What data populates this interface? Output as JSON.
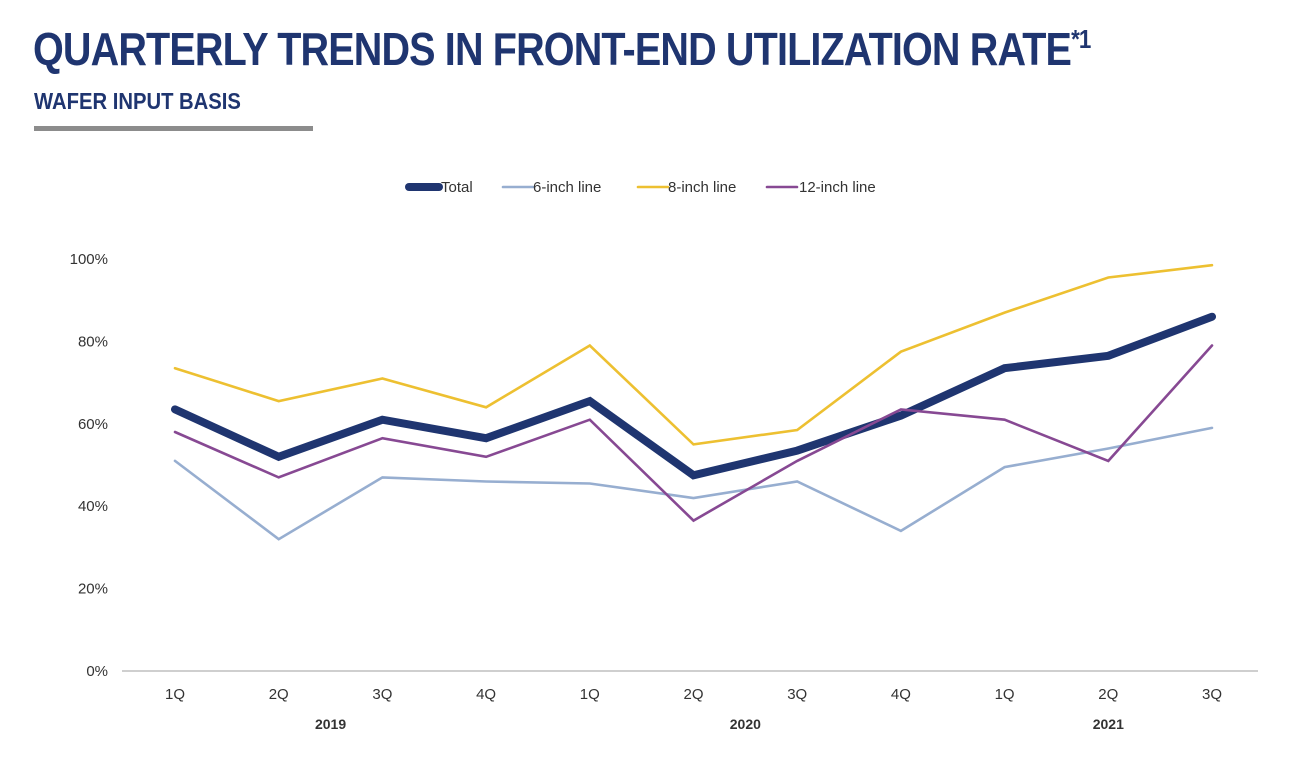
{
  "header": {
    "title": "QUARTERLY TRENDS IN FRONT-END UTILIZATION RATE",
    "title_footnote": "*1",
    "subtitle": "WAFER INPUT BASIS"
  },
  "chart_data": {
    "type": "line",
    "title": "QUARTERLY TRENDS IN FRONT-END UTILIZATION RATE*1",
    "subtitle": "WAFER INPUT BASIS",
    "categories": [
      "1Q",
      "2Q",
      "3Q",
      "4Q",
      "1Q",
      "2Q",
      "3Q",
      "4Q",
      "1Q",
      "2Q",
      "3Q"
    ],
    "year_groups": [
      {
        "label": "2019",
        "start": 0,
        "end": 3
      },
      {
        "label": "2020",
        "start": 4,
        "end": 7
      },
      {
        "label": "2021",
        "start": 8,
        "end": 10
      }
    ],
    "ylim": [
      0,
      100
    ],
    "yticks": [
      0,
      20,
      40,
      60,
      80,
      100
    ],
    "ytick_labels": [
      "0%",
      "20%",
      "40%",
      "60%",
      "80%",
      "100%"
    ],
    "grid": false,
    "legend_position": "top-center",
    "series": [
      {
        "name": "Total",
        "color": "#1f3570",
        "line_width": "thick",
        "values": [
          63.5,
          52,
          61,
          56.5,
          65.5,
          47.5,
          53.5,
          62,
          73.5,
          76.5,
          86
        ]
      },
      {
        "name": "6-inch line",
        "color": "#97aed0",
        "line_width": "thin",
        "values": [
          51,
          32,
          47,
          46,
          45.5,
          42,
          46,
          34,
          49.5,
          54,
          59
        ]
      },
      {
        "name": "8-inch line",
        "color": "#edc031",
        "line_width": "thin",
        "values": [
          73.5,
          65.5,
          71,
          64,
          79,
          55,
          58.5,
          77.5,
          87,
          95.5,
          98.5
        ]
      },
      {
        "name": "12-inch line",
        "color": "#874993",
        "line_width": "thin",
        "values": [
          58,
          47,
          56.5,
          52,
          61,
          36.5,
          51,
          63.5,
          61,
          51,
          79
        ]
      }
    ]
  }
}
